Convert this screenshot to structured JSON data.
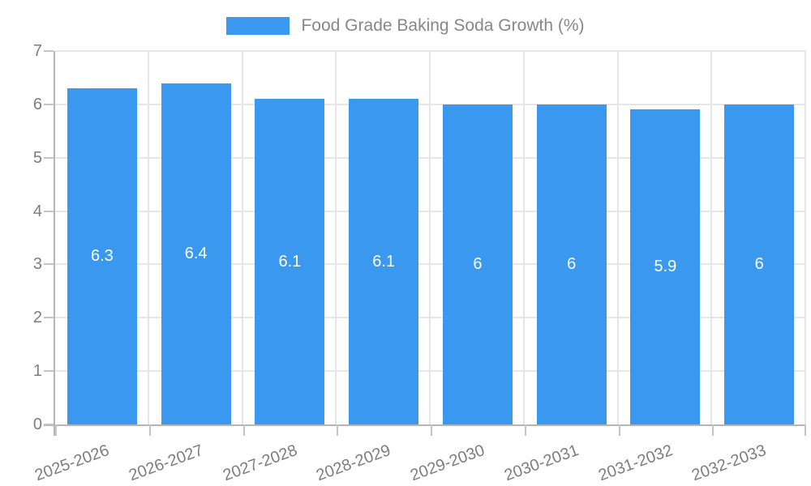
{
  "legend": {
    "items": [
      {
        "label": "Food Grade Baking Soda Growth (%)",
        "swatch_color": "#3a99ee"
      }
    ]
  },
  "chart_data": {
    "type": "bar",
    "title": "Food Grade Baking Soda Growth (%)",
    "categories": [
      "2025-2026",
      "2026-2027",
      "2027-2028",
      "2028-2029",
      "2029-2030",
      "2030-2031",
      "2031-2032",
      "2032-2033"
    ],
    "values": [
      6.3,
      6.4,
      6.1,
      6.1,
      6,
      6,
      5.9,
      6
    ],
    "bar_labels": [
      "6.3",
      "6.4",
      "6.1",
      "6.1",
      "6",
      "6",
      "5.9",
      "6"
    ],
    "xlabel": "",
    "ylabel": "",
    "ylim": [
      0,
      7
    ],
    "yticks": [
      0,
      1,
      2,
      3,
      4,
      5,
      6,
      7
    ],
    "grid": true,
    "legend_position": "top",
    "x_label_rotation_deg": -20,
    "colors": {
      "bar": "#3a99ee",
      "bar_label": "#ffffff",
      "axis": "#b5b5b5",
      "grid": "#e6e6e6",
      "tick": "#c4c4c4",
      "tick_text": "#7d7d7d",
      "legend_text": "#878787",
      "background": "#ffffff"
    }
  }
}
